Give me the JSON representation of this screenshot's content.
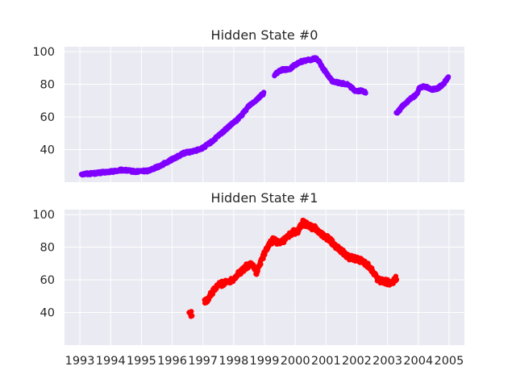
{
  "chart_data": [
    {
      "type": "scatter",
      "title": "Hidden State #0",
      "xlabel": "",
      "ylabel": "",
      "xlim": [
        1992.5,
        2005.5
      ],
      "ylim": [
        20,
        103
      ],
      "xticks": [
        "1993",
        "1994",
        "1995",
        "1996",
        "1997",
        "1998",
        "1999",
        "2000",
        "2001",
        "2002",
        "2003",
        "2004",
        "2005"
      ],
      "yticks": [
        40,
        60,
        80,
        100
      ],
      "grid": true,
      "color": "#8000ff",
      "x_tick_labels_visible": false,
      "anchors": [
        [
          1993.05,
          25
        ],
        [
          1993.5,
          25.5
        ],
        [
          1994.0,
          26.5
        ],
        [
          1994.4,
          27.5
        ],
        [
          1994.8,
          26.5
        ],
        [
          1995.2,
          27
        ],
        [
          1995.6,
          30
        ],
        [
          1996.0,
          34
        ],
        [
          1996.4,
          38
        ],
        [
          1996.7,
          39
        ],
        [
          1997.0,
          41
        ],
        [
          1997.3,
          45
        ],
        [
          1997.6,
          50
        ],
        [
          1997.9,
          55
        ],
        [
          1998.1,
          58
        ],
        [
          1998.3,
          62
        ],
        [
          1998.5,
          67
        ],
        [
          1998.7,
          70
        ],
        [
          1998.95,
          74
        ],
        [
          1999.35,
          86
        ],
        [
          1999.55,
          89
        ],
        [
          1999.8,
          89
        ],
        [
          2000.0,
          92
        ],
        [
          2000.2,
          94
        ],
        [
          2000.45,
          95
        ],
        [
          2000.7,
          96
        ],
        [
          2001.0,
          87
        ],
        [
          2001.2,
          82
        ],
        [
          2001.4,
          81
        ],
        [
          2001.7,
          80
        ],
        [
          2001.95,
          76
        ],
        [
          2002.2,
          76
        ],
        [
          2003.3,
          62
        ],
        [
          2003.5,
          67
        ],
        [
          2003.75,
          71
        ],
        [
          2003.95,
          74
        ],
        [
          2004.05,
          78
        ],
        [
          2004.2,
          79
        ],
        [
          2004.4,
          77
        ],
        [
          2004.6,
          77
        ],
        [
          2004.8,
          80
        ],
        [
          2004.98,
          84
        ]
      ],
      "gaps": [
        [
          1998.98,
          1999.32
        ],
        [
          2002.3,
          2003.28
        ]
      ]
    },
    {
      "type": "scatter",
      "title": "Hidden State #1",
      "xlabel": "",
      "ylabel": "",
      "xlim": [
        1992.5,
        2005.5
      ],
      "ylim": [
        20,
        103
      ],
      "xticks": [
        "1993",
        "1994",
        "1995",
        "1996",
        "1997",
        "1998",
        "1999",
        "2000",
        "2001",
        "2002",
        "2003",
        "2004",
        "2005"
      ],
      "yticks": [
        40,
        60,
        80,
        100
      ],
      "grid": true,
      "color": "#ff0000",
      "x_tick_labels_visible": true,
      "anchors": [
        [
          1996.55,
          40
        ],
        [
          1996.62,
          39
        ],
        [
          1997.1,
          47
        ],
        [
          1997.3,
          52
        ],
        [
          1997.5,
          57
        ],
        [
          1997.7,
          58
        ],
        [
          1997.95,
          60
        ],
        [
          1998.4,
          68
        ],
        [
          1998.6,
          70
        ],
        [
          1998.75,
          64
        ],
        [
          1998.9,
          72
        ],
        [
          1999.1,
          80
        ],
        [
          1999.3,
          85
        ],
        [
          1999.5,
          82
        ],
        [
          1999.7,
          85
        ],
        [
          1999.9,
          89
        ],
        [
          2000.1,
          90
        ],
        [
          2000.25,
          95
        ],
        [
          2000.45,
          93
        ],
        [
          2000.7,
          91
        ],
        [
          2000.9,
          87
        ],
        [
          2001.1,
          85
        ],
        [
          2001.3,
          81
        ],
        [
          2001.5,
          78
        ],
        [
          2001.7,
          74
        ],
        [
          2001.9,
          73
        ],
        [
          2002.1,
          72
        ],
        [
          2002.3,
          70
        ],
        [
          2002.5,
          66
        ],
        [
          2002.7,
          60
        ],
        [
          2002.9,
          59
        ],
        [
          2003.1,
          58
        ],
        [
          2003.3,
          61
        ]
      ],
      "gaps": [
        [
          1996.65,
          1997.05
        ]
      ]
    }
  ]
}
